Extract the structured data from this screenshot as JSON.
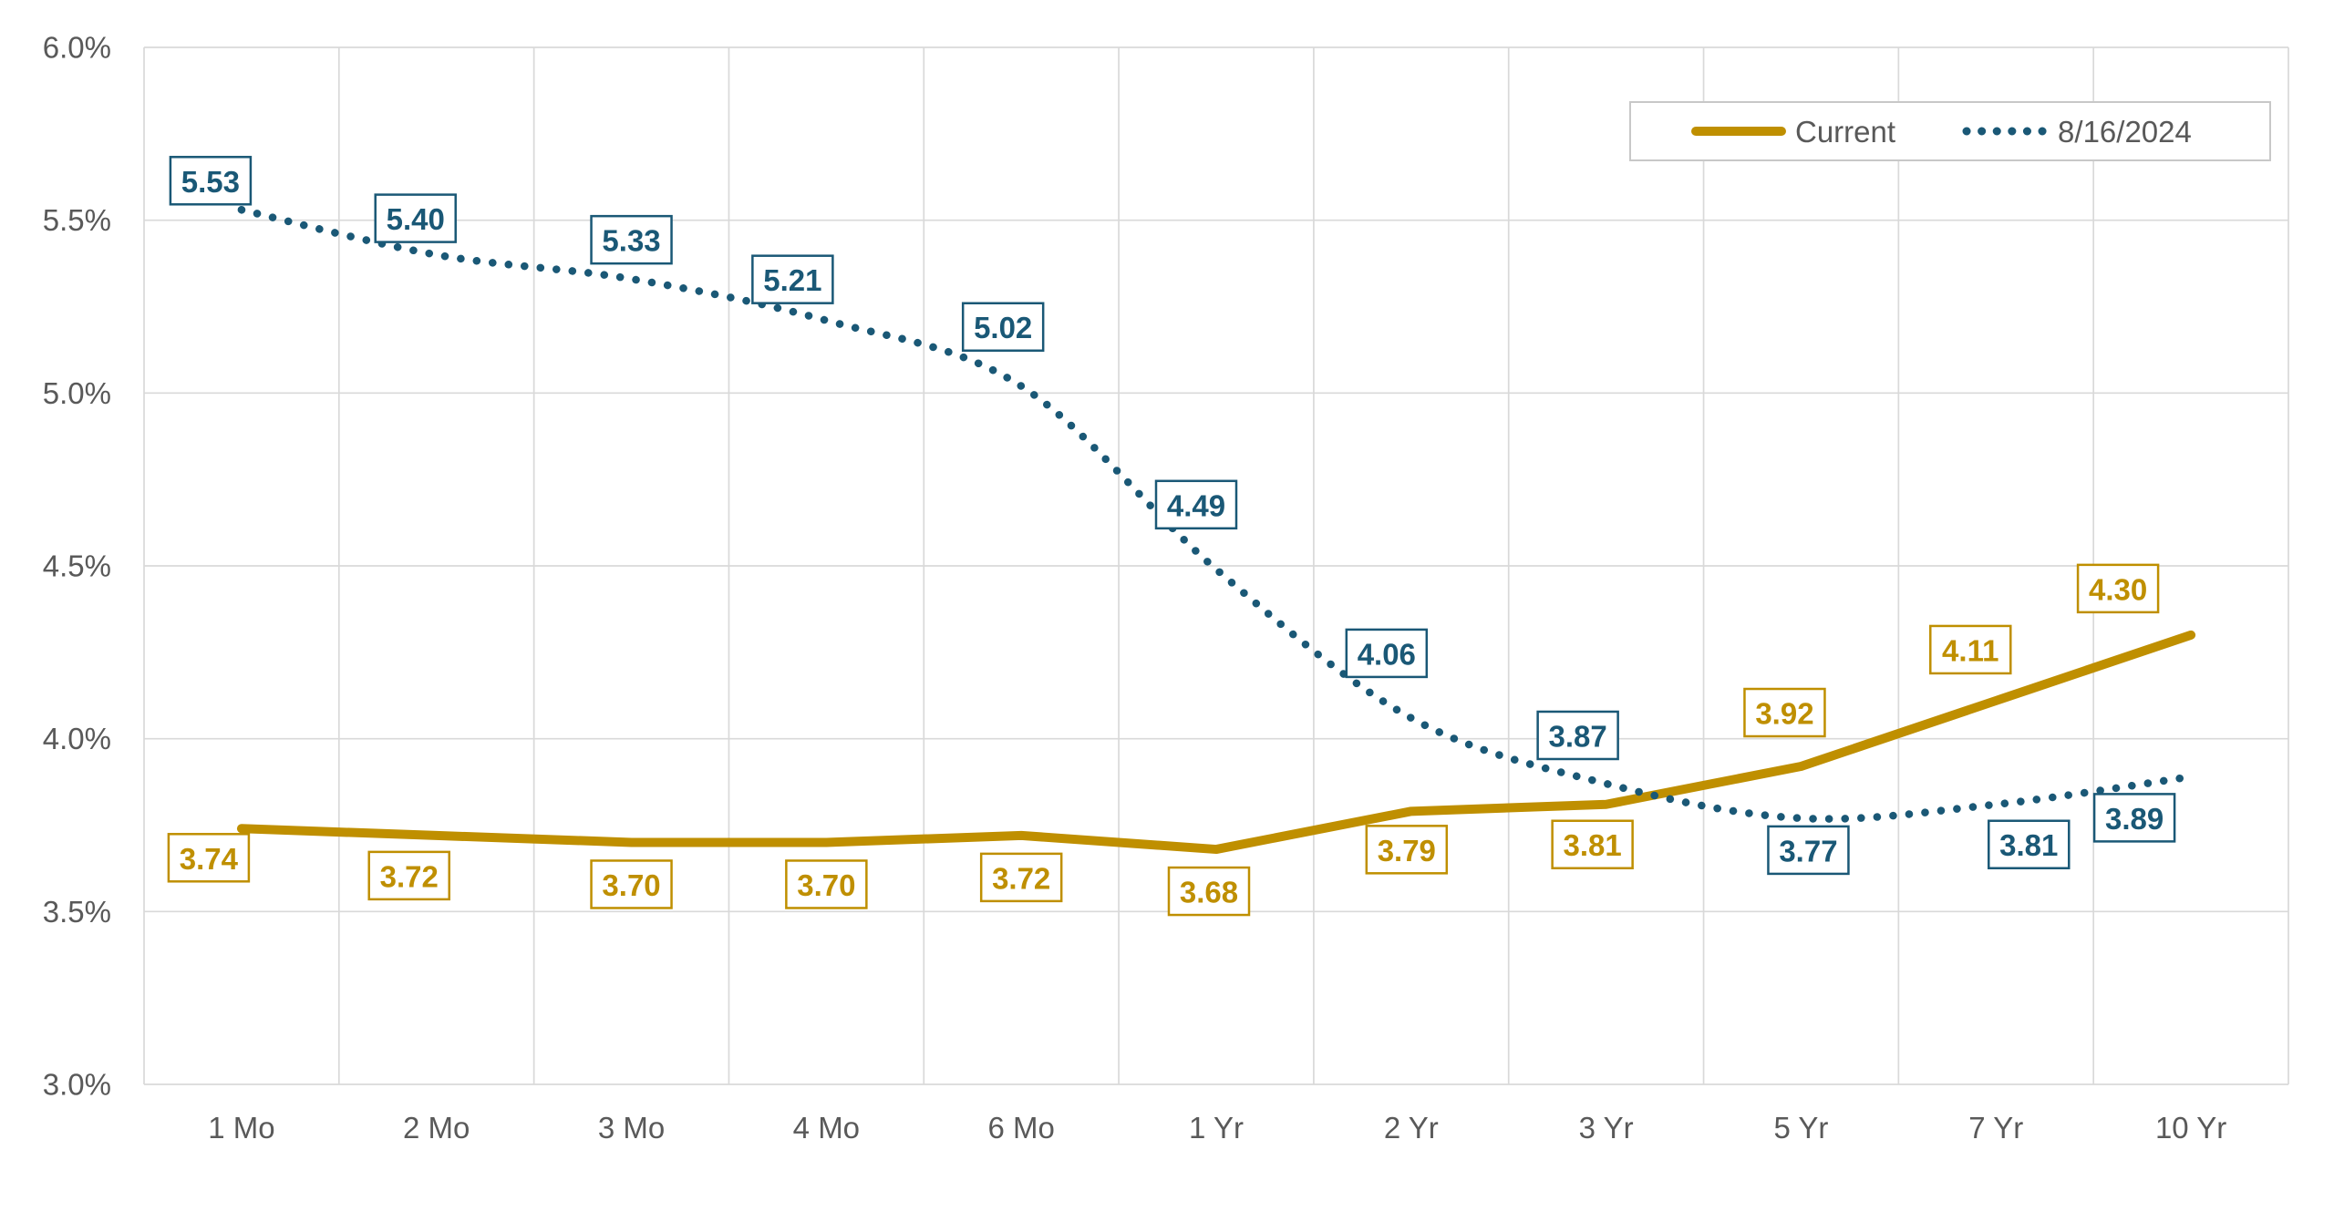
{
  "chart_data": {
    "type": "line",
    "title": "",
    "categories": [
      "1 Mo",
      "2 Mo",
      "3 Mo",
      "4 Mo",
      "6 Mo",
      "1 Yr",
      "2 Yr",
      "3 Yr",
      "5 Yr",
      "7 Yr",
      "10 Yr"
    ],
    "series": [
      {
        "name": "Current",
        "color": "#BF8F00",
        "line_style": "solid",
        "smooth": false,
        "values": [
          3.74,
          3.72,
          3.7,
          3.7,
          3.72,
          3.68,
          3.79,
          3.81,
          3.92,
          4.11,
          4.3
        ],
        "labels": [
          "3.74",
          "3.72",
          "3.70",
          "3.70",
          "3.72",
          "3.68",
          "3.79",
          "3.81",
          "3.92",
          "4.11",
          "4.30"
        ],
        "label_side": [
          "below",
          "below",
          "below",
          "below",
          "below",
          "below",
          "below",
          "below",
          "above",
          "above",
          "above"
        ],
        "label_dx": [
          -36,
          -30,
          0,
          0,
          0,
          -8,
          -5,
          -15,
          -18,
          -28,
          -80
        ],
        "label_gap": [
          6,
          18,
          20,
          20,
          20,
          20,
          16,
          18,
          33,
          30,
          25
        ]
      },
      {
        "name": "8/16/2024",
        "color": "#1A5876",
        "line_style": "dotted",
        "smooth": true,
        "values": [
          5.53,
          5.4,
          5.33,
          5.21,
          5.02,
          4.49,
          4.06,
          3.87,
          3.77,
          3.81,
          3.89
        ],
        "labels": [
          "5.53",
          "5.40",
          "5.33",
          "5.21",
          "5.02",
          "4.49",
          "4.06",
          "3.87",
          "3.77",
          "3.81",
          "3.89"
        ],
        "label_side": [
          "above",
          "above",
          "above",
          "above",
          "above",
          "above",
          "above",
          "above",
          "below",
          "below",
          "below"
        ],
        "label_dx": [
          -34,
          -23,
          0,
          -37,
          -20,
          -22,
          -27,
          -31,
          8,
          36,
          -62
        ],
        "label_gap": [
          6,
          14,
          17,
          19,
          39,
          45,
          45,
          27,
          9,
          18,
          19
        ]
      }
    ],
    "y_axis": {
      "min": 3.0,
      "max": 6.0,
      "step": 0.5,
      "tick_labels": [
        "6.0%",
        "5.5%",
        "5.0%",
        "4.5%",
        "4.0%",
        "3.5%",
        "3.0%"
      ]
    },
    "x_axis": {
      "tick_labels": [
        "1 Mo",
        "2 Mo",
        "3 Mo",
        "4 Mo",
        "6 Mo",
        "1 Yr",
        "2 Yr",
        "3 Yr",
        "5 Yr",
        "7 Yr",
        "10 Yr"
      ]
    },
    "legend": {
      "position": "top-right",
      "entries": [
        {
          "label": "Current",
          "swatch": "solid-line"
        },
        {
          "label": "8/16/2024",
          "swatch": "dotted-line"
        }
      ]
    },
    "grid": {
      "show": true,
      "color": "#D9D9D9"
    },
    "styles": {
      "background": "#FFFFFF",
      "axis_text_color": "#595959",
      "legend_border_color": "#C8C8C8",
      "axis_font_size": 33,
      "data_label_font_size": 33
    }
  }
}
